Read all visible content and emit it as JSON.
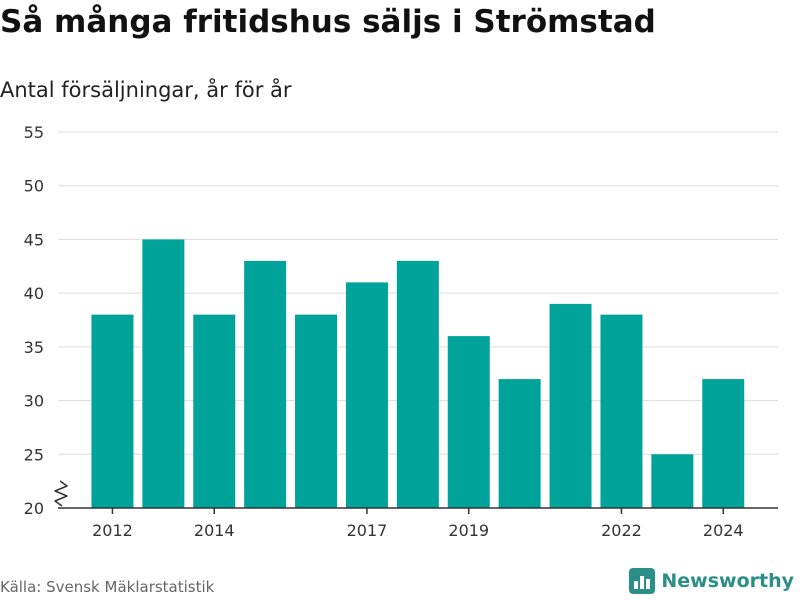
{
  "header": {
    "title": "Så många fritidshus säljs i Strömstad",
    "subtitle": "Antal försäljningar, år för år"
  },
  "footer": {
    "source": "Källa: Svensk Mäklarstatistik",
    "brand_name": "Newsworthy",
    "brand_icon": "bar-chart-logo-icon"
  },
  "colors": {
    "bar": "#00A39A",
    "grid": "#dddddd",
    "axis": "#333333",
    "tick_text": "#333333",
    "brand": "#2b8f88"
  },
  "chart_data": {
    "type": "bar",
    "title": "",
    "subtitle": "",
    "xlabel": "",
    "ylabel": "",
    "categories": [
      "2012",
      "2013",
      "2014",
      "2015",
      "2016",
      "2017",
      "2018",
      "2019",
      "2020",
      "2021",
      "2022",
      "2023",
      "2024"
    ],
    "series": [
      {
        "values": [
          38,
          45,
          38,
          43,
          38,
          41,
          43,
          36,
          32,
          39,
          38,
          25,
          32
        ]
      }
    ],
    "x_tick_labels": [
      "2012",
      "2014",
      "2017",
      "2019",
      "2022",
      "2024"
    ],
    "ylim": [
      20,
      55
    ],
    "y_ticks": [
      20,
      25,
      30,
      35,
      40,
      45,
      50,
      55
    ],
    "y_axis_break": true,
    "grid": true,
    "legend": "none"
  }
}
